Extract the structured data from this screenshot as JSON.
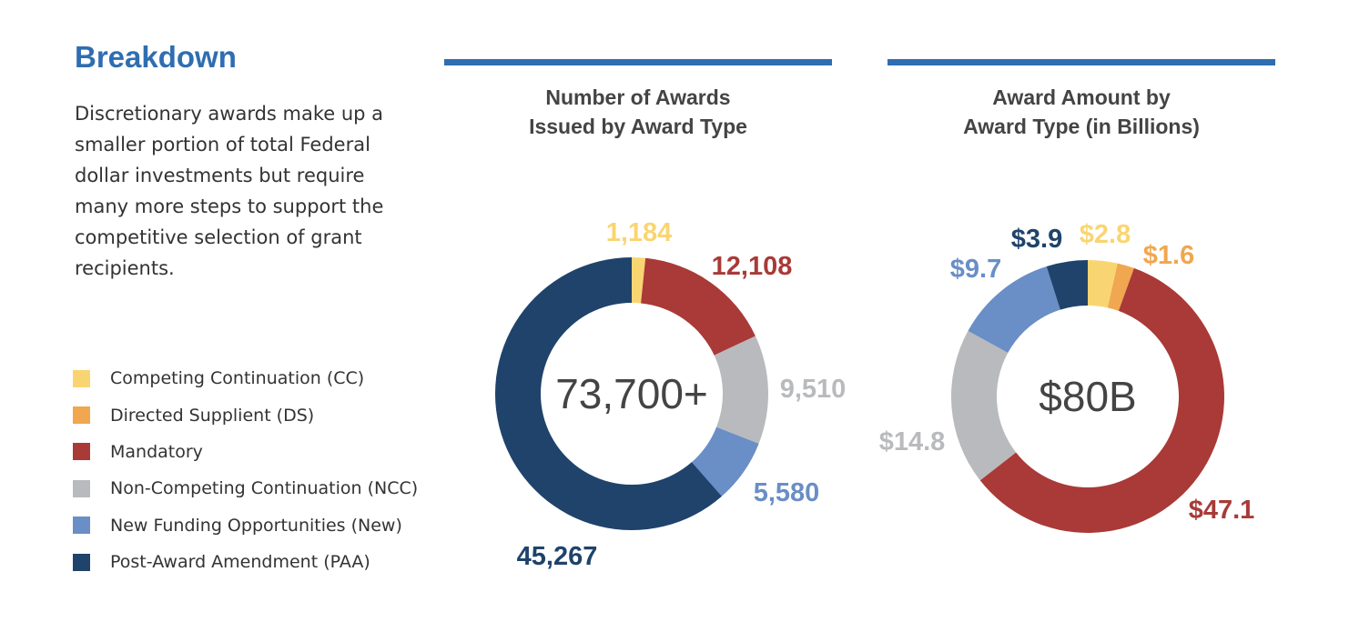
{
  "title": "Breakdown",
  "description": "Discretionary awards make up a smaller portion of total Federal dollar investments but require many more steps to support the competitive selection of grant recipients.",
  "legend": [
    {
      "label": "Competing Continuation (CC)",
      "color": "#f9d572"
    },
    {
      "label": "Directed Supplient (DS)",
      "color": "#f0a74f"
    },
    {
      "label": "Mandatory",
      "color": "#a93a37"
    },
    {
      "label": "Non-Competing Continuation (NCC)",
      "color": "#b9babd"
    },
    {
      "label": "New Funding Opportunities (New)",
      "color": "#6a8ec6"
    },
    {
      "label": "Post-Award Amendment (PAA)",
      "color": "#1f436b"
    }
  ],
  "chart_data": [
    {
      "type": "pie",
      "title_line1": "Number of Awards",
      "title_line2": "Issued by Award Type",
      "center_label": "73,700+",
      "categories": [
        "Competing Continuation (CC)",
        "Mandatory",
        "Non-Competing Continuation (NCC)",
        "New Funding Opportunities (New)",
        "Post-Award Amendment (PAA)"
      ],
      "values": [
        1184,
        12108,
        9510,
        5580,
        45267
      ],
      "labels": [
        "1,184",
        "12,108",
        "9,510",
        "5,580",
        "45,267"
      ],
      "colors": [
        "#f9d572",
        "#a93a37",
        "#b9babd",
        "#6a8ec6",
        "#1f436b"
      ]
    },
    {
      "type": "pie",
      "title_line1": "Award Amount by",
      "title_line2": "Award Type (in Billions)",
      "center_label": "$80B",
      "categories": [
        "Competing Continuation (CC)",
        "Directed Supplient (DS)",
        "Mandatory",
        "Non-Competing Continuation (NCC)",
        "New Funding Opportunities (New)",
        "Post-Award Amendment (PAA)"
      ],
      "values": [
        2.8,
        1.6,
        47.1,
        14.8,
        9.7,
        3.9
      ],
      "labels": [
        "$2.8",
        "$1.6",
        "$47.1",
        "$14.8",
        "$9.7",
        "$3.9"
      ],
      "colors": [
        "#f9d572",
        "#f0a74f",
        "#a93a37",
        "#b9babd",
        "#6a8ec6",
        "#1f436b"
      ]
    }
  ]
}
